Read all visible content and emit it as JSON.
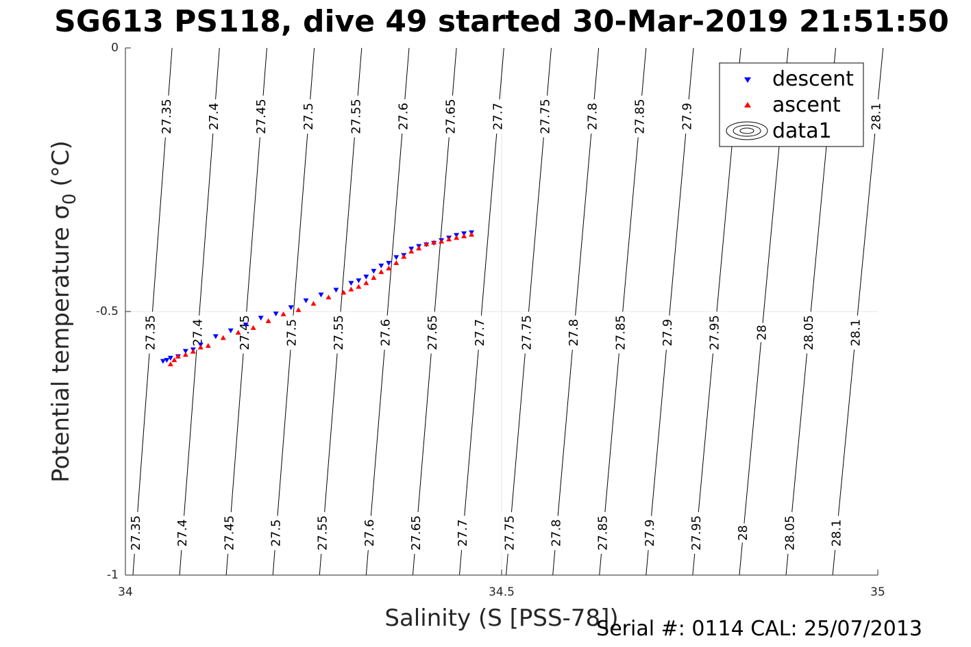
{
  "chart_data": {
    "type": "scatter",
    "title": "SG613 PS118, dive 49 started 30-Mar-2019 21:51:50",
    "xlabel": "Salinity (S [PSS-78])",
    "ylabel_main": "Potential temperature σ",
    "ylabel_sub": "0",
    "ylabel_unit": "(°C)",
    "xlim": [
      34,
      35
    ],
    "ylim": [
      -1,
      0
    ],
    "xticks": [
      "34",
      "34.5",
      "35"
    ],
    "xtick_values": [
      34,
      34.5,
      35
    ],
    "yticks": [
      "0",
      "-0.5",
      "-1"
    ],
    "ytick_values": [
      0,
      -0.5,
      -1
    ],
    "grid": true,
    "legend_position": "top-right",
    "legend": [
      "descent",
      "ascent",
      "data1"
    ],
    "footer": "Serial #: 0114  CAL: 25/07/2013",
    "colors": {
      "descent": "#0000ff",
      "ascent": "#ff0000",
      "contour": "#000000",
      "grid": "#e6e6e6"
    },
    "density_levels": [
      "27.35",
      "27.4",
      "27.45",
      "27.5",
      "27.55",
      "27.6",
      "27.65",
      "27.7",
      "27.75",
      "27.8",
      "27.85",
      "27.9",
      "27.95",
      "28",
      "28.05",
      "28.1"
    ],
    "contour_salinity_at_bottom": [
      34.01,
      34.072,
      34.134,
      34.196,
      34.258,
      34.32,
      34.382,
      34.444,
      34.506,
      34.568,
      34.63,
      34.692,
      34.754,
      34.816,
      34.878,
      34.94
    ],
    "contour_salinity_at_top": [
      34.062,
      34.125,
      34.188,
      34.251,
      34.314,
      34.377,
      34.44,
      34.503,
      34.566,
      34.629,
      34.692,
      34.755,
      34.818,
      34.881,
      34.944,
      35.007
    ],
    "contour_label_rows": [
      {
        "y": -0.13,
        "labels": [
          "27.35",
          "27.4",
          "27.45",
          "27.5",
          "27.55",
          "27.6",
          "27.65",
          "27.7",
          "27.75",
          "27.8",
          "27.85",
          "27.9",
          "",
          "",
          "",
          "28.1"
        ]
      },
      {
        "y": -0.54,
        "labels": [
          "27.35",
          "27.4",
          "27.45",
          "27.5",
          "27.55",
          "27.6",
          "27.65",
          "27.7",
          "27.75",
          "27.8",
          "27.85",
          "27.9",
          "27.95",
          "28",
          "28.05",
          "28.1"
        ]
      },
      {
        "y": -0.92,
        "labels": [
          "27.35",
          "27.4",
          "27.45",
          "27.5",
          "27.55",
          "27.6",
          "27.65",
          "27.7",
          "27.75",
          "27.8",
          "27.85",
          "27.9",
          "27.95",
          "28",
          "28.05",
          "28.1"
        ]
      }
    ],
    "series": [
      {
        "name": "descent",
        "marker": "triangle-down",
        "x": [
          34.05,
          34.055,
          34.06,
          34.07,
          34.08,
          34.09,
          34.1,
          34.12,
          34.14,
          34.16,
          34.18,
          34.2,
          34.22,
          34.24,
          34.26,
          34.28,
          34.3,
          34.31,
          34.32,
          34.33,
          34.34,
          34.35,
          34.36,
          34.37,
          34.38,
          34.39,
          34.4,
          34.41,
          34.42,
          34.43,
          34.44,
          34.45,
          34.46
        ],
        "y": [
          -0.594,
          -0.592,
          -0.588,
          -0.585,
          -0.575,
          -0.572,
          -0.563,
          -0.547,
          -0.536,
          -0.525,
          -0.512,
          -0.504,
          -0.492,
          -0.479,
          -0.468,
          -0.459,
          -0.446,
          -0.441,
          -0.434,
          -0.423,
          -0.413,
          -0.408,
          -0.397,
          -0.393,
          -0.381,
          -0.376,
          -0.373,
          -0.37,
          -0.365,
          -0.36,
          -0.355,
          -0.352,
          -0.35
        ]
      },
      {
        "name": "ascent",
        "marker": "triangle-up",
        "x": [
          34.06,
          34.065,
          34.07,
          34.08,
          34.09,
          34.1,
          34.11,
          34.13,
          34.15,
          34.17,
          34.19,
          34.21,
          34.23,
          34.25,
          34.27,
          34.29,
          34.3,
          34.31,
          34.32,
          34.33,
          34.34,
          34.35,
          34.36,
          34.37,
          34.38,
          34.39,
          34.4,
          34.41,
          34.42,
          34.43,
          34.44,
          34.45,
          34.46
        ],
        "y": [
          -0.6,
          -0.592,
          -0.585,
          -0.582,
          -0.576,
          -0.568,
          -0.565,
          -0.55,
          -0.54,
          -0.531,
          -0.518,
          -0.505,
          -0.497,
          -0.485,
          -0.473,
          -0.464,
          -0.458,
          -0.453,
          -0.446,
          -0.436,
          -0.425,
          -0.418,
          -0.408,
          -0.396,
          -0.386,
          -0.38,
          -0.372,
          -0.369,
          -0.367,
          -0.363,
          -0.36,
          -0.357,
          -0.354
        ]
      }
    ]
  }
}
